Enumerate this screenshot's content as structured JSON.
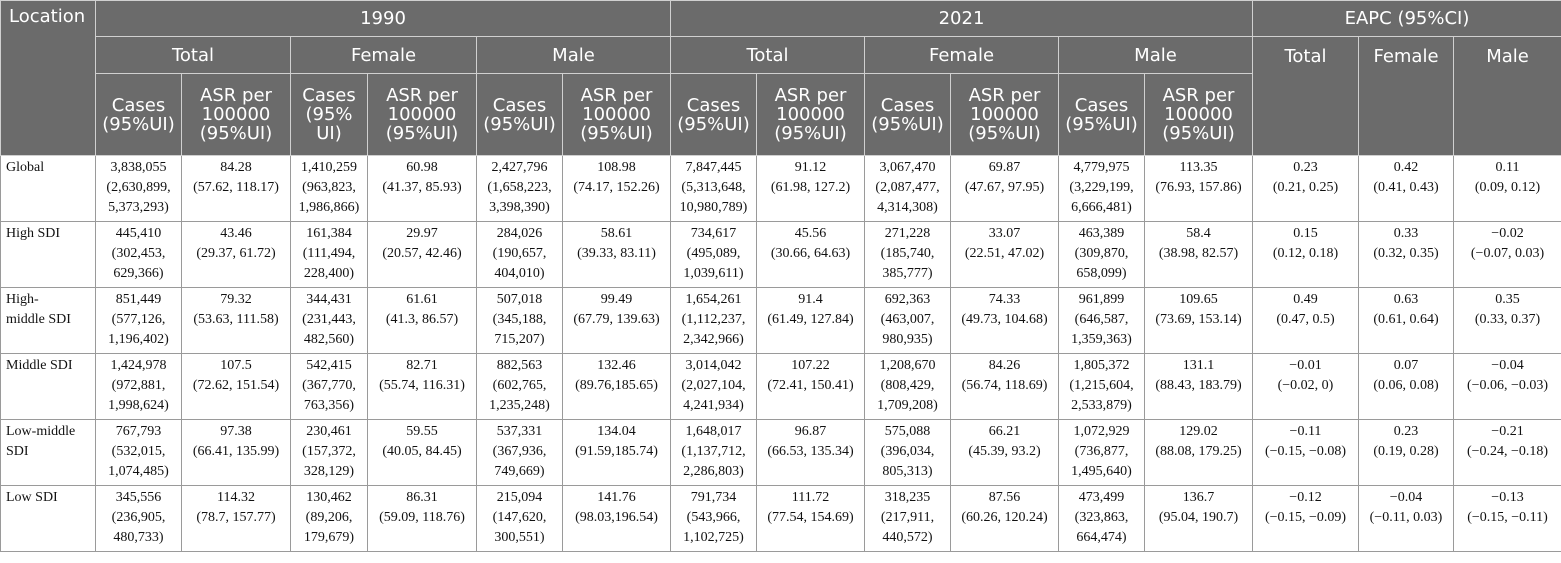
{
  "header": {
    "location": "Location",
    "years": [
      "1990",
      "2021"
    ],
    "eapc": "EAPC (95%CI)",
    "groups": [
      "Total",
      "Female",
      "Male"
    ],
    "cases_label": [
      "Cases",
      "(95%UI)"
    ],
    "cases_label_female_1990": [
      "Cases",
      "(95%",
      "UI)"
    ],
    "asr_label": [
      "ASR per",
      "100000",
      "(95%UI)"
    ],
    "eapc_cols": [
      "Total",
      "Female",
      "Male"
    ]
  },
  "rows": [
    {
      "location": "Global",
      "cells": [
        [
          "3,838,055",
          "(2,630,899,",
          "5,373,293)"
        ],
        [
          "84.28",
          "(57.62, 118.17)"
        ],
        [
          "1,410,259",
          "(963,823,",
          "1,986,866)"
        ],
        [
          "60.98",
          "(41.37, 85.93)"
        ],
        [
          "2,427,796",
          "(1,658,223,",
          "3,398,390)"
        ],
        [
          "108.98",
          "(74.17, 152.26)"
        ],
        [
          "7,847,445",
          "(5,313,648,",
          "10,980,789)"
        ],
        [
          "91.12",
          "(61.98, 127.2)"
        ],
        [
          "3,067,470",
          "(2,087,477,",
          "4,314,308)"
        ],
        [
          "69.87",
          "(47.67, 97.95)"
        ],
        [
          "4,779,975",
          "(3,229,199,",
          "6,666,481)"
        ],
        [
          "113.35",
          "(76.93, 157.86)"
        ],
        [
          "0.23",
          "(0.21, 0.25)"
        ],
        [
          "0.42",
          "(0.41, 0.43)"
        ],
        [
          "0.11",
          "(0.09, 0.12)"
        ]
      ]
    },
    {
      "location": "High SDI",
      "cells": [
        [
          "445,410",
          "(302,453,",
          "629,366)"
        ],
        [
          "43.46",
          "(29.37, 61.72)"
        ],
        [
          "161,384",
          "(111,494,",
          "228,400)"
        ],
        [
          "29.97",
          "(20.57, 42.46)"
        ],
        [
          "284,026",
          "(190,657,",
          "404,010)"
        ],
        [
          "58.61",
          "(39.33, 83.11)"
        ],
        [
          "734,617",
          "(495,089,",
          "1,039,611)"
        ],
        [
          "45.56",
          "(30.66, 64.63)"
        ],
        [
          "271,228",
          "(185,740,",
          "385,777)"
        ],
        [
          "33.07",
          "(22.51, 47.02)"
        ],
        [
          "463,389",
          "(309,870,",
          "658,099)"
        ],
        [
          "58.4",
          "(38.98, 82.57)"
        ],
        [
          "0.15",
          "(0.12, 0.18)"
        ],
        [
          "0.33",
          "(0.32, 0.35)"
        ],
        [
          "−0.02",
          "(−0.07, 0.03)"
        ]
      ]
    },
    {
      "location": "High-middle SDI",
      "location_lines": [
        "High-",
        "middle SDI"
      ],
      "cells": [
        [
          "851,449",
          "(577,126,",
          "1,196,402)"
        ],
        [
          "79.32",
          "(53.63, 111.58)"
        ],
        [
          "344,431",
          "(231,443,",
          "482,560)"
        ],
        [
          "61.61",
          "(41.3, 86.57)"
        ],
        [
          "507,018",
          "(345,188,",
          "715,207)"
        ],
        [
          "99.49",
          "(67.79, 139.63)"
        ],
        [
          "1,654,261",
          "(1,112,237,",
          "2,342,966)"
        ],
        [
          "91.4",
          "(61.49, 127.84)"
        ],
        [
          "692,363",
          "(463,007,",
          "980,935)"
        ],
        [
          "74.33",
          "(49.73, 104.68)"
        ],
        [
          "961,899",
          "(646,587,",
          "1,359,363)"
        ],
        [
          "109.65",
          "(73.69, 153.14)"
        ],
        [
          "0.49",
          "(0.47, 0.5)"
        ],
        [
          "0.63",
          "(0.61, 0.64)"
        ],
        [
          "0.35",
          "(0.33, 0.37)"
        ]
      ]
    },
    {
      "location": "Middle SDI",
      "cells": [
        [
          "1,424,978",
          "(972,881,",
          "1,998,624)"
        ],
        [
          "107.5",
          "(72.62, 151.54)"
        ],
        [
          "542,415",
          "(367,770,",
          "763,356)"
        ],
        [
          "82.71",
          "(55.74, 116.31)"
        ],
        [
          "882,563",
          "(602,765,",
          "1,235,248)"
        ],
        [
          "132.46",
          "(89.76,185.65)"
        ],
        [
          "3,014,042",
          "(2,027,104,",
          "4,241,934)"
        ],
        [
          "107.22",
          "(72.41, 150.41)"
        ],
        [
          "1,208,670",
          "(808,429,",
          "1,709,208)"
        ],
        [
          "84.26",
          "(56.74, 118.69)"
        ],
        [
          "1,805,372",
          "(1,215,604,",
          "2,533,879)"
        ],
        [
          "131.1",
          "(88.43, 183.79)"
        ],
        [
          "−0.01",
          "(−0.02, 0)"
        ],
        [
          "0.07",
          "(0.06, 0.08)"
        ],
        [
          "−0.04",
          "(−0.06, −0.03)"
        ]
      ]
    },
    {
      "location": "Low-middle SDI",
      "location_lines": [
        "Low-middle",
        "SDI"
      ],
      "cells": [
        [
          "767,793",
          "(532,015,",
          "1,074,485)"
        ],
        [
          "97.38",
          "(66.41, 135.99)"
        ],
        [
          "230,461",
          "(157,372,",
          "328,129)"
        ],
        [
          "59.55",
          "(40.05, 84.45)"
        ],
        [
          "537,331",
          "(367,936,",
          "749,669)"
        ],
        [
          "134.04",
          "(91.59,185.74)"
        ],
        [
          "1,648,017",
          "(1,137,712,",
          "2,286,803)"
        ],
        [
          "96.87",
          "(66.53, 135.34)"
        ],
        [
          "575,088",
          "(396,034,",
          "805,313)"
        ],
        [
          "66.21",
          "(45.39, 93.2)"
        ],
        [
          "1,072,929",
          "(736,877,",
          "1,495,640)"
        ],
        [
          "129.02",
          "(88.08, 179.25)"
        ],
        [
          "−0.11",
          "(−0.15, −0.08)"
        ],
        [
          "0.23",
          "(0.19, 0.28)"
        ],
        [
          "−0.21",
          "(−0.24, −0.18)"
        ]
      ]
    },
    {
      "location": "Low SDI",
      "cells": [
        [
          "345,556",
          "(236,905,",
          "480,733)"
        ],
        [
          "114.32",
          "(78.7, 157.77)"
        ],
        [
          "130,462",
          "(89,206,",
          "179,679)"
        ],
        [
          "86.31",
          "(59.09, 118.76)"
        ],
        [
          "215,094",
          "(147,620,",
          "300,551)"
        ],
        [
          "141.76",
          "(98.03,196.54)"
        ],
        [
          "791,734",
          "(543,966,",
          "1,102,725)"
        ],
        [
          "111.72",
          "(77.54, 154.69)"
        ],
        [
          "318,235",
          "(217,911,",
          "440,572)"
        ],
        [
          "87.56",
          "(60.26, 120.24)"
        ],
        [
          "473,499",
          "(323,863,",
          "664,474)"
        ],
        [
          "136.7",
          "(95.04, 190.7)"
        ],
        [
          "−0.12",
          "(−0.15, −0.09)"
        ],
        [
          "−0.04",
          "(−0.11, 0.03)"
        ],
        [
          "−0.13",
          "(−0.15, −0.11)"
        ]
      ]
    }
  ]
}
